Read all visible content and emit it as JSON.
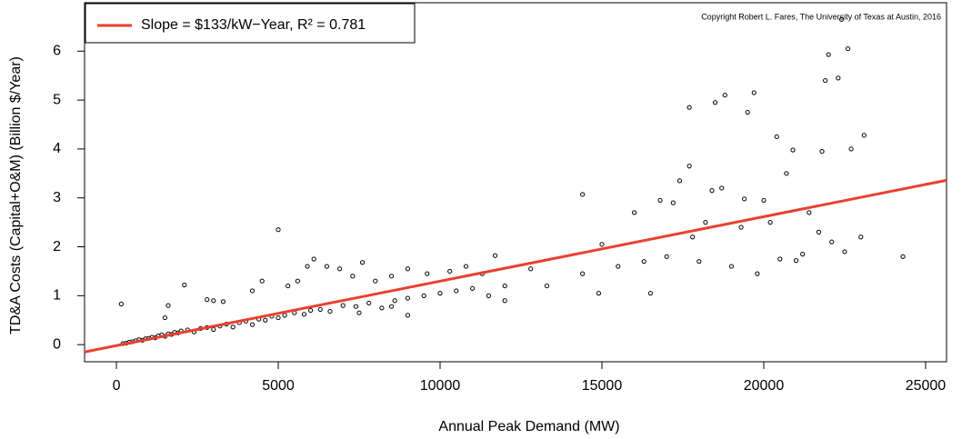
{
  "chart_data": {
    "type": "scatter",
    "xlabel": "Annual Peak Demand (MW)",
    "ylabel": "TD&A Costs (Capital+O&M) (Billion $/Year)",
    "annotation": "Copyright Robert L. Fares, The University of Texas at Austin, 2016",
    "xlim": [
      -984,
      25647
    ],
    "ylim": [
      -0.35,
      6.99
    ],
    "xticks": [
      0,
      5000,
      10000,
      15000,
      20000,
      25000
    ],
    "yticks": [
      0,
      1,
      2,
      3,
      4,
      5,
      6
    ],
    "legend": "top-left",
    "series": [
      {
        "type": "scatter",
        "color": "#000000",
        "x": [
          200,
          300,
          400,
          500,
          600,
          700,
          800,
          900,
          1000,
          1100,
          1200,
          1300,
          1400,
          1500,
          1600,
          1700,
          1800,
          1900,
          2000,
          2200,
          2400,
          2600,
          2800,
          3000,
          3200,
          3400,
          3600,
          3800,
          4000,
          4200,
          4400,
          4600,
          4800,
          5000,
          5200,
          5500,
          5800,
          6000,
          6300,
          6600,
          7000,
          7400,
          7800,
          8200,
          8600,
          9000,
          9500,
          10000,
          10500,
          11000,
          11500,
          12000,
          150,
          1500,
          1600,
          2100,
          2800,
          3000,
          3300,
          4200,
          4500,
          5000,
          5300,
          5600,
          5900,
          6100,
          6500,
          6900,
          7300,
          7600,
          8000,
          8500,
          9000,
          9600,
          10300,
          10800,
          11300,
          11700,
          12800,
          7500,
          8500,
          9000,
          12000,
          13300,
          14400,
          14900,
          14400,
          15000,
          15500,
          16000,
          16300,
          16500,
          17000,
          17200,
          17400,
          17700,
          17700,
          17800,
          18000,
          18200,
          18400,
          18700,
          18800,
          19000,
          19300,
          19500,
          19700,
          19800,
          20000,
          20200,
          20400,
          20500,
          20700,
          20900,
          21200,
          21400,
          21700,
          21800,
          21900,
          22000,
          22100,
          22300,
          22400,
          22500,
          22600,
          22700,
          23000,
          23100,
          24300,
          18500,
          16800,
          19400,
          21000
        ],
        "y": [
          0.02,
          0.03,
          0.05,
          0.06,
          0.08,
          0.1,
          0.09,
          0.12,
          0.13,
          0.15,
          0.14,
          0.18,
          0.2,
          0.17,
          0.22,
          0.21,
          0.25,
          0.24,
          0.28,
          0.3,
          0.26,
          0.33,
          0.35,
          0.31,
          0.38,
          0.42,
          0.36,
          0.45,
          0.48,
          0.41,
          0.52,
          0.5,
          0.58,
          0.55,
          0.6,
          0.65,
          0.62,
          0.7,
          0.72,
          0.68,
          0.8,
          0.78,
          0.85,
          0.75,
          0.9,
          0.95,
          1.0,
          1.05,
          1.1,
          1.15,
          1.0,
          1.2,
          0.83,
          0.55,
          0.8,
          1.22,
          0.92,
          0.9,
          0.88,
          1.1,
          1.3,
          2.35,
          1.2,
          1.3,
          1.6,
          1.75,
          1.6,
          1.55,
          1.4,
          1.68,
          1.3,
          1.4,
          1.55,
          1.45,
          1.5,
          1.6,
          1.45,
          1.82,
          1.55,
          0.65,
          0.78,
          0.6,
          0.9,
          1.2,
          1.45,
          1.05,
          3.07,
          2.05,
          1.6,
          2.7,
          1.7,
          1.05,
          1.8,
          2.9,
          3.35,
          3.65,
          4.85,
          2.2,
          1.7,
          2.5,
          3.15,
          3.2,
          5.1,
          1.6,
          2.4,
          4.75,
          5.15,
          1.45,
          2.95,
          2.5,
          4.25,
          1.75,
          3.5,
          3.98,
          1.85,
          2.7,
          2.3,
          3.95,
          5.4,
          5.93,
          2.1,
          5.45,
          6.65,
          1.9,
          6.05,
          4.0,
          2.2,
          4.28,
          1.8,
          4.95,
          2.95,
          2.98,
          1.72
        ]
      },
      {
        "type": "line",
        "name": "Slope = $133/kW−Year, R² = 0.781",
        "color": "#e8412f",
        "x": [
          -984,
          25647
        ],
        "y": [
          -0.15,
          3.36
        ]
      }
    ]
  }
}
